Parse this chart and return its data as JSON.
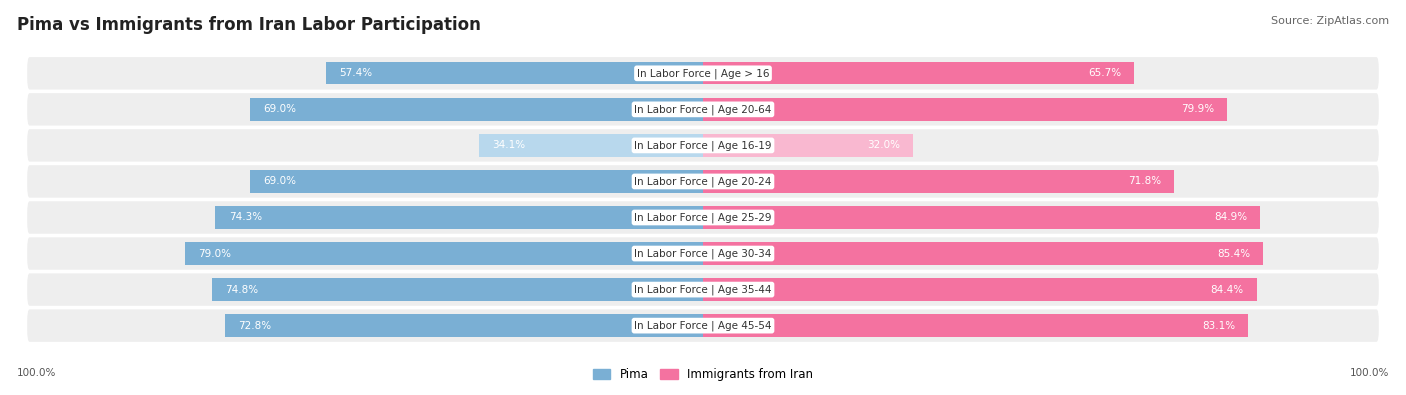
{
  "title": "Pima vs Immigrants from Iran Labor Participation",
  "source": "Source: ZipAtlas.com",
  "categories": [
    "In Labor Force | Age > 16",
    "In Labor Force | Age 20-64",
    "In Labor Force | Age 16-19",
    "In Labor Force | Age 20-24",
    "In Labor Force | Age 25-29",
    "In Labor Force | Age 30-34",
    "In Labor Force | Age 35-44",
    "In Labor Force | Age 45-54"
  ],
  "pima_values": [
    57.4,
    69.0,
    34.1,
    69.0,
    74.3,
    79.0,
    74.8,
    72.8
  ],
  "iran_values": [
    65.7,
    79.9,
    32.0,
    71.8,
    84.9,
    85.4,
    84.4,
    83.1
  ],
  "pima_color": "#7aafd4",
  "pima_color_light": "#b8d8ed",
  "iran_color": "#f472a0",
  "iran_color_light": "#f9b8d0",
  "background_color": "#ffffff",
  "row_bg_color": "#eeeeee",
  "figsize": [
    14.06,
    3.95
  ],
  "dpi": 100,
  "title_fontsize": 12,
  "label_fontsize": 7.5,
  "value_fontsize": 7.5,
  "source_fontsize": 8,
  "legend_fontsize": 8.5
}
